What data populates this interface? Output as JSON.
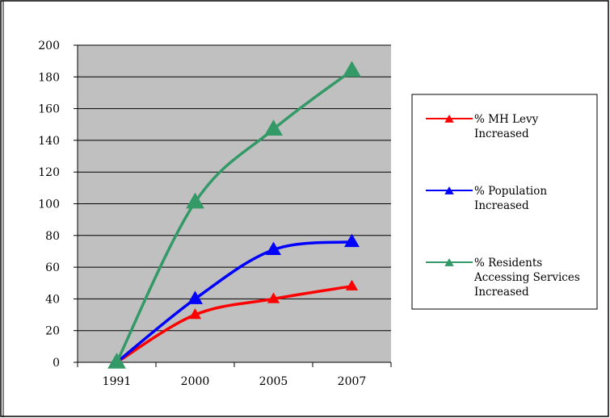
{
  "chart_data": {
    "type": "line",
    "categories": [
      "1991",
      "2000",
      "2005",
      "2007"
    ],
    "ylim": [
      0,
      200
    ],
    "yticks": [
      0,
      20,
      40,
      60,
      80,
      100,
      120,
      140,
      160,
      180,
      200
    ],
    "grid": "horizontal",
    "smooth": true,
    "legend_position": "right",
    "plot_background": "#c0c0c0",
    "series": [
      {
        "name": "% MH Levy Increased",
        "legend_lines": [
          "% MH Levy",
          "Increased"
        ],
        "values": [
          0,
          30,
          40,
          48
        ],
        "color": "#ff0000",
        "marker": "triangle"
      },
      {
        "name": "% Population Increased",
        "legend_lines": [
          "% Population",
          "Increased"
        ],
        "values": [
          0,
          40,
          71,
          76
        ],
        "color": "#0000ff",
        "marker": "triangle"
      },
      {
        "name": "% Residents Accessing Services Increased",
        "legend_lines": [
          "% Residents",
          "Accessing Services",
          "Increased"
        ],
        "values": [
          0,
          101,
          147,
          184
        ],
        "color": "#339966",
        "marker": "triangle"
      }
    ]
  }
}
